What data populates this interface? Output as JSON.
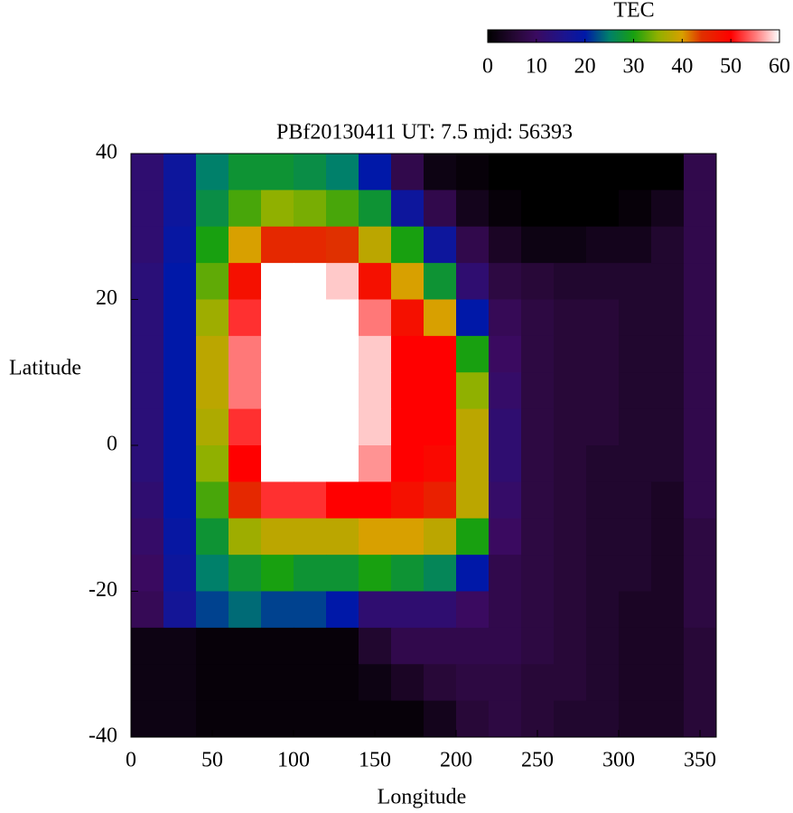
{
  "chart_data": {
    "type": "heatmap",
    "title": "PBf20130411  UT: 7.5  mjd: 56393",
    "xlabel": "Longitude",
    "ylabel": "Latitude",
    "colorbar_label": "TEC",
    "x": [
      10,
      30,
      50,
      70,
      90,
      110,
      130,
      150,
      170,
      190,
      210,
      230,
      250,
      270,
      290,
      310,
      330,
      350
    ],
    "y": [
      37.5,
      32.5,
      27.5,
      22.5,
      17.5,
      12.5,
      7.5,
      2.5,
      -2.5,
      -7.5,
      -12.5,
      -17.5,
      -22.5,
      -27.5,
      -32.5,
      -37.5
    ],
    "z": [
      [
        12,
        18,
        25,
        28,
        28,
        27,
        25,
        20,
        8,
        2,
        1,
        0,
        0,
        0,
        0,
        0,
        0,
        8
      ],
      [
        12,
        18,
        27,
        32,
        35,
        34,
        32,
        28,
        18,
        8,
        3,
        1,
        0,
        0,
        0,
        1,
        3,
        8
      ],
      [
        12,
        19,
        30,
        40,
        45,
        45,
        44,
        38,
        30,
        18,
        8,
        4,
        2,
        2,
        3,
        3,
        5,
        8
      ],
      [
        13,
        20,
        33,
        48,
        60,
        60,
        58,
        48,
        40,
        28,
        12,
        7,
        6,
        5,
        5,
        5,
        5,
        8
      ],
      [
        13,
        20,
        36,
        52,
        60,
        60,
        60,
        55,
        48,
        40,
        20,
        9,
        7,
        6,
        6,
        5,
        5,
        8
      ],
      [
        13,
        20,
        38,
        55,
        60,
        60,
        60,
        58,
        50,
        50,
        30,
        10,
        7,
        6,
        6,
        5,
        5,
        8
      ],
      [
        13,
        20,
        38,
        55,
        60,
        60,
        60,
        58,
        50,
        50,
        35,
        11,
        7,
        6,
        6,
        5,
        5,
        8
      ],
      [
        13,
        20,
        37,
        52,
        60,
        60,
        60,
        58,
        50,
        50,
        38,
        12,
        7,
        6,
        6,
        5,
        5,
        8
      ],
      [
        13,
        20,
        35,
        50,
        60,
        60,
        60,
        56,
        50,
        49,
        38,
        12,
        7,
        6,
        5,
        5,
        5,
        8
      ],
      [
        12,
        20,
        32,
        45,
        52,
        52,
        50,
        50,
        48,
        46,
        38,
        11,
        7,
        6,
        5,
        5,
        4,
        8
      ],
      [
        11,
        19,
        28,
        36,
        38,
        38,
        38,
        40,
        40,
        38,
        30,
        10,
        7,
        6,
        5,
        5,
        4,
        7
      ],
      [
        10,
        18,
        25,
        28,
        30,
        28,
        28,
        30,
        28,
        26,
        20,
        8,
        7,
        6,
        5,
        5,
        4,
        7
      ],
      [
        9,
        17,
        22,
        24,
        22,
        22,
        20,
        12,
        12,
        12,
        10,
        8,
        7,
        6,
        5,
        4,
        4,
        7
      ],
      [
        2,
        2,
        1,
        1,
        1,
        1,
        1,
        5,
        8,
        8,
        8,
        8,
        7,
        6,
        5,
        4,
        4,
        6
      ],
      [
        2,
        2,
        1,
        1,
        1,
        1,
        1,
        2,
        4,
        6,
        7,
        7,
        6,
        6,
        5,
        4,
        4,
        6
      ],
      [
        2,
        2,
        1,
        1,
        1,
        1,
        1,
        1,
        1,
        3,
        6,
        7,
        6,
        5,
        5,
        4,
        4,
        6
      ]
    ],
    "xlim": [
      0,
      360
    ],
    "ylim": [
      -40,
      40
    ],
    "xticks": [
      0,
      50,
      100,
      150,
      200,
      250,
      300,
      350
    ],
    "yticks": [
      -40,
      -20,
      0,
      20,
      40
    ],
    "colorbar_lim": [
      0,
      60
    ],
    "colorbar_ticks": [
      0,
      10,
      20,
      30,
      40,
      50,
      60
    ],
    "colorscale": [
      [
        0,
        "#000000"
      ],
      [
        6,
        "#280838"
      ],
      [
        10,
        "#3a0a60"
      ],
      [
        16,
        "#1a1490"
      ],
      [
        20,
        "#0018a8"
      ],
      [
        25,
        "#00806a"
      ],
      [
        30,
        "#18a010"
      ],
      [
        35,
        "#90b000"
      ],
      [
        40,
        "#d8a000"
      ],
      [
        44,
        "#e03000"
      ],
      [
        50,
        "#ff0000"
      ],
      [
        55,
        "#ff7878"
      ],
      [
        60,
        "#ffffff"
      ]
    ]
  }
}
